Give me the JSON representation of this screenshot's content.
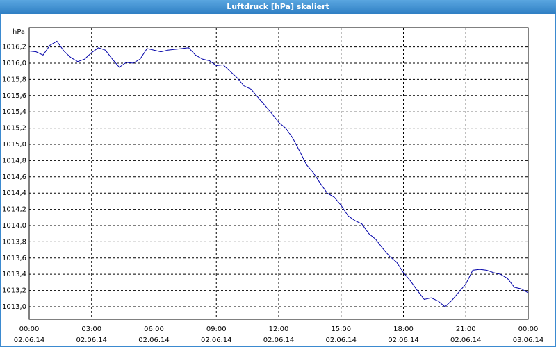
{
  "chart_data": {
    "type": "line",
    "title": "Luftdruck [hPa] skaliert",
    "y_label": "hPa",
    "x": [
      "2014-06-02T00:00",
      "2014-06-02T00:20",
      "2014-06-02T00:40",
      "2014-06-02T01:00",
      "2014-06-02T01:20",
      "2014-06-02T01:40",
      "2014-06-02T02:00",
      "2014-06-02T02:20",
      "2014-06-02T02:40",
      "2014-06-02T03:00",
      "2014-06-02T03:20",
      "2014-06-02T03:40",
      "2014-06-02T04:00",
      "2014-06-02T04:20",
      "2014-06-02T04:40",
      "2014-06-02T05:00",
      "2014-06-02T05:20",
      "2014-06-02T05:40",
      "2014-06-02T06:00",
      "2014-06-02T06:20",
      "2014-06-02T06:40",
      "2014-06-02T07:00",
      "2014-06-02T07:20",
      "2014-06-02T07:40",
      "2014-06-02T08:00",
      "2014-06-02T08:20",
      "2014-06-02T08:40",
      "2014-06-02T09:00",
      "2014-06-02T09:20",
      "2014-06-02T09:40",
      "2014-06-02T10:00",
      "2014-06-02T10:20",
      "2014-06-02T10:40",
      "2014-06-02T11:00",
      "2014-06-02T11:20",
      "2014-06-02T11:40",
      "2014-06-02T12:00",
      "2014-06-02T12:20",
      "2014-06-02T12:40",
      "2014-06-02T13:00",
      "2014-06-02T13:20",
      "2014-06-02T13:40",
      "2014-06-02T14:00",
      "2014-06-02T14:20",
      "2014-06-02T14:40",
      "2014-06-02T15:00",
      "2014-06-02T15:20",
      "2014-06-02T15:40",
      "2014-06-02T16:00",
      "2014-06-02T16:20",
      "2014-06-02T16:40",
      "2014-06-02T17:00",
      "2014-06-02T17:20",
      "2014-06-02T17:40",
      "2014-06-02T18:00",
      "2014-06-02T18:20",
      "2014-06-02T18:40",
      "2014-06-02T19:00",
      "2014-06-02T19:20",
      "2014-06-02T19:40",
      "2014-06-02T20:00",
      "2014-06-02T20:20",
      "2014-06-02T20:40",
      "2014-06-02T21:00",
      "2014-06-02T21:20",
      "2014-06-02T21:40",
      "2014-06-02T22:00",
      "2014-06-02T22:20",
      "2014-06-02T22:40",
      "2014-06-02T23:00",
      "2014-06-02T23:20",
      "2014-06-02T23:40",
      "2014-06-03T00:00"
    ],
    "series": [
      {
        "color": "#0000a8",
        "values": [
          1016.15,
          1016.14,
          1016.1,
          1016.22,
          1016.27,
          1016.15,
          1016.07,
          1016.02,
          1016.05,
          1016.13,
          1016.19,
          1016.16,
          1016.05,
          1015.95,
          1016.01,
          1016.0,
          1016.05,
          1016.18,
          1016.16,
          1016.14,
          1016.16,
          1016.17,
          1016.18,
          1016.19,
          1016.1,
          1016.05,
          1016.03,
          1015.97,
          1015.98,
          1015.9,
          1015.82,
          1015.72,
          1015.68,
          1015.58,
          1015.48,
          1015.38,
          1015.27,
          1015.2,
          1015.08,
          1014.92,
          1014.75,
          1014.65,
          1014.52,
          1014.4,
          1014.35,
          1014.25,
          1014.12,
          1014.06,
          1014.02,
          1013.9,
          1013.83,
          1013.72,
          1013.62,
          1013.55,
          1013.42,
          1013.32,
          1013.2,
          1013.09,
          1013.11,
          1013.07,
          1013.0,
          1013.08,
          1013.18,
          1013.28,
          1013.45,
          1013.46,
          1013.45,
          1013.42,
          1013.4,
          1013.35,
          1013.24,
          1013.22,
          1013.17
        ]
      }
    ],
    "xlim": [
      "2014-06-02T00:00",
      "2014-06-03T00:00"
    ],
    "xticks": [
      {
        "value": "2014-06-02T00:00",
        "label": "00:00",
        "date": "02.06.14"
      },
      {
        "value": "2014-06-02T03:00",
        "label": "03:00",
        "date": "02.06.14"
      },
      {
        "value": "2014-06-02T06:00",
        "label": "06:00",
        "date": "02.06.14"
      },
      {
        "value": "2014-06-02T09:00",
        "label": "09:00",
        "date": "02.06.14"
      },
      {
        "value": "2014-06-02T12:00",
        "label": "12:00",
        "date": "02.06.14"
      },
      {
        "value": "2014-06-02T15:00",
        "label": "15:00",
        "date": "02.06.14"
      },
      {
        "value": "2014-06-02T18:00",
        "label": "18:00",
        "date": "02.06.14"
      },
      {
        "value": "2014-06-02T21:00",
        "label": "21:00",
        "date": "02.06.14"
      },
      {
        "value": "2014-06-03T00:00",
        "label": "00:00",
        "date": "03.06.14"
      }
    ],
    "ylim": [
      1012.846,
      1016.436
    ],
    "yticks": [
      {
        "value": 1013.0,
        "label": "1013,0"
      },
      {
        "value": 1013.2,
        "label": "1013,2"
      },
      {
        "value": 1013.4,
        "label": "1013,4"
      },
      {
        "value": 1013.6,
        "label": "1013,6"
      },
      {
        "value": 1013.8,
        "label": "1013,8"
      },
      {
        "value": 1014.0,
        "label": "1014,0"
      },
      {
        "value": 1014.2,
        "label": "1014,2"
      },
      {
        "value": 1014.4,
        "label": "1014,4"
      },
      {
        "value": 1014.6,
        "label": "1014,6"
      },
      {
        "value": 1014.8,
        "label": "1014,8"
      },
      {
        "value": 1015.0,
        "label": "1015,0"
      },
      {
        "value": 1015.2,
        "label": "1015,2"
      },
      {
        "value": 1015.4,
        "label": "1015,4"
      },
      {
        "value": 1015.6,
        "label": "1015,6"
      },
      {
        "value": 1015.8,
        "label": "1015,8"
      },
      {
        "value": 1016.0,
        "label": "1016,0"
      },
      {
        "value": 1016.2,
        "label": "1016,2"
      }
    ],
    "grid": true
  }
}
